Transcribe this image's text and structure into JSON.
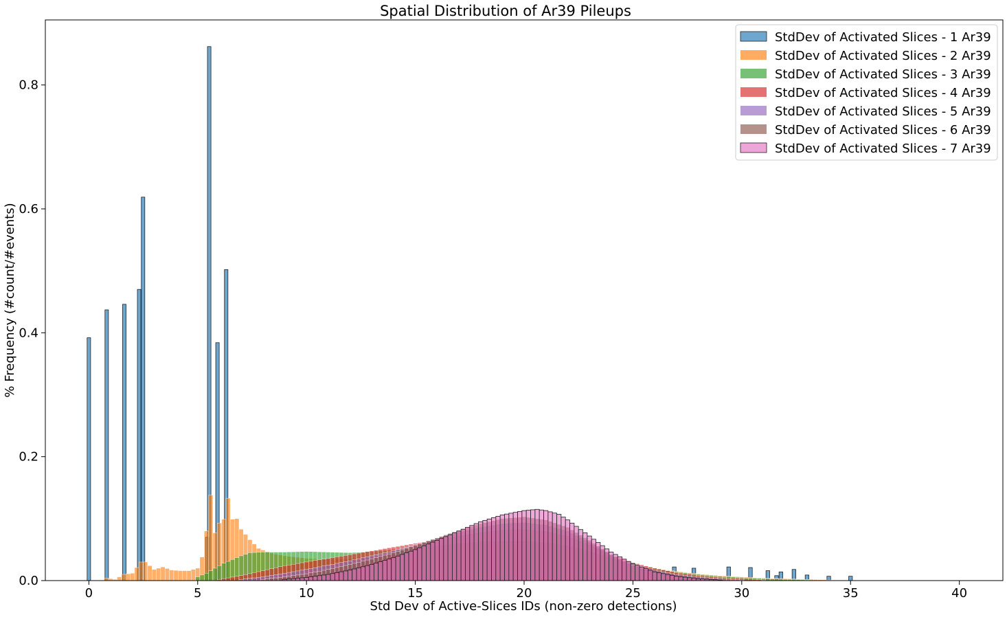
{
  "chart_data": {
    "type": "bar",
    "title": "Spatial Distribution of Ar39 Pileups",
    "xlabel": "Std Dev of Active-Slices IDs (non-zero detections)",
    "ylabel": "% Frequency (#count/#events)",
    "xlim": [
      -2.0,
      42.0
    ],
    "ylim": [
      0,
      0.905
    ],
    "xticks": [
      0,
      5,
      10,
      15,
      20,
      25,
      30,
      35,
      40
    ],
    "yticks": [
      0.0,
      0.2,
      0.4,
      0.6,
      0.8
    ],
    "legend_position": "upper right",
    "bin_width": 0.2,
    "grid": false,
    "series": [
      {
        "name": "StdDev of Activated Slices - 1 Ar39",
        "color": "#1f77b4",
        "style": "bars",
        "points": [
          [
            0.0,
            0.392
          ],
          [
            0.82,
            0.437
          ],
          [
            1.63,
            0.446
          ],
          [
            2.31,
            0.47
          ],
          [
            2.49,
            0.619
          ],
          [
            5.44,
            0.07
          ],
          [
            5.53,
            0.862
          ],
          [
            5.91,
            0.384
          ],
          [
            6.31,
            0.502
          ],
          [
            26.9,
            0.022
          ],
          [
            27.8,
            0.02
          ],
          [
            29.4,
            0.022
          ],
          [
            30.4,
            0.021
          ],
          [
            31.2,
            0.016
          ],
          [
            31.6,
            0.008
          ],
          [
            31.8,
            0.014
          ],
          [
            32.4,
            0.018
          ],
          [
            33.0,
            0.009
          ],
          [
            34.0,
            0.007
          ],
          [
            35.0,
            0.007
          ]
        ]
      },
      {
        "name": "StdDev of Activated Slices - 2 Ar39",
        "color": "#ff7f0e",
        "style": "curve",
        "points": [
          [
            0.8,
            0.004
          ],
          [
            1.2,
            0.002
          ],
          [
            1.6,
            0.01
          ],
          [
            2.0,
            0.012
          ],
          [
            2.4,
            0.03
          ],
          [
            2.6,
            0.03
          ],
          [
            3.0,
            0.018
          ],
          [
            3.4,
            0.022
          ],
          [
            3.8,
            0.017
          ],
          [
            4.2,
            0.016
          ],
          [
            4.6,
            0.016
          ],
          [
            5.0,
            0.02
          ],
          [
            5.2,
            0.038
          ],
          [
            5.4,
            0.08
          ],
          [
            5.6,
            0.138
          ],
          [
            5.8,
            0.077
          ],
          [
            6.0,
            0.093
          ],
          [
            6.2,
            0.099
          ],
          [
            6.4,
            0.133
          ],
          [
            6.6,
            0.099
          ],
          [
            6.8,
            0.1
          ],
          [
            7.0,
            0.083
          ],
          [
            7.4,
            0.066
          ],
          [
            7.8,
            0.052
          ],
          [
            8.4,
            0.044
          ],
          [
            9.0,
            0.04
          ],
          [
            10.0,
            0.036
          ],
          [
            11.0,
            0.034
          ],
          [
            12.0,
            0.035
          ],
          [
            13.0,
            0.037
          ],
          [
            14.0,
            0.04
          ],
          [
            15.0,
            0.045
          ],
          [
            16.0,
            0.05
          ],
          [
            17.0,
            0.055
          ],
          [
            18.0,
            0.058
          ],
          [
            19.0,
            0.06
          ],
          [
            20.0,
            0.06
          ],
          [
            21.0,
            0.058
          ],
          [
            22.0,
            0.053
          ],
          [
            23.0,
            0.045
          ],
          [
            24.0,
            0.035
          ],
          [
            25.0,
            0.026
          ],
          [
            26.0,
            0.02
          ],
          [
            27.0,
            0.015
          ],
          [
            28.0,
            0.011
          ],
          [
            29.0,
            0.008
          ],
          [
            30.0,
            0.006
          ],
          [
            31.0,
            0.004
          ],
          [
            32.0,
            0.003
          ],
          [
            33.0,
            0.002
          ],
          [
            34.0,
            0.001
          ]
        ]
      },
      {
        "name": "StdDev of Activated Slices - 3 Ar39",
        "color": "#2ca02c",
        "style": "curve",
        "points": [
          [
            5.0,
            0.006
          ],
          [
            5.4,
            0.012
          ],
          [
            5.8,
            0.02
          ],
          [
            6.2,
            0.028
          ],
          [
            6.6,
            0.034
          ],
          [
            7.0,
            0.04
          ],
          [
            7.4,
            0.045
          ],
          [
            8.0,
            0.046
          ],
          [
            9.0,
            0.046
          ],
          [
            10.0,
            0.047
          ],
          [
            11.0,
            0.046
          ],
          [
            12.0,
            0.045
          ],
          [
            13.0,
            0.047
          ],
          [
            14.0,
            0.05
          ],
          [
            15.0,
            0.053
          ],
          [
            16.0,
            0.057
          ],
          [
            17.0,
            0.06
          ],
          [
            18.0,
            0.063
          ],
          [
            19.0,
            0.064
          ],
          [
            20.0,
            0.064
          ],
          [
            21.0,
            0.062
          ],
          [
            22.0,
            0.057
          ],
          [
            23.0,
            0.048
          ],
          [
            24.0,
            0.037
          ],
          [
            25.0,
            0.026
          ],
          [
            26.0,
            0.02
          ],
          [
            27.0,
            0.014
          ],
          [
            28.0,
            0.01
          ],
          [
            29.0,
            0.007
          ],
          [
            30.0,
            0.005
          ],
          [
            31.0,
            0.003
          ],
          [
            32.0,
            0.002
          ],
          [
            33.0,
            0.001
          ]
        ]
      },
      {
        "name": "StdDev of Activated Slices - 4 Ar39",
        "color": "#d62728",
        "style": "curve",
        "points": [
          [
            6.0,
            0.002
          ],
          [
            7.0,
            0.008
          ],
          [
            8.0,
            0.016
          ],
          [
            9.0,
            0.024
          ],
          [
            10.0,
            0.03
          ],
          [
            11.0,
            0.036
          ],
          [
            12.0,
            0.042
          ],
          [
            13.0,
            0.048
          ],
          [
            14.0,
            0.054
          ],
          [
            15.0,
            0.06
          ],
          [
            16.0,
            0.066
          ],
          [
            17.0,
            0.072
          ],
          [
            18.0,
            0.078
          ],
          [
            19.0,
            0.082
          ],
          [
            20.0,
            0.083
          ],
          [
            21.0,
            0.08
          ],
          [
            22.0,
            0.072
          ],
          [
            23.0,
            0.058
          ],
          [
            24.0,
            0.042
          ],
          [
            25.0,
            0.029
          ],
          [
            26.0,
            0.02
          ],
          [
            27.0,
            0.013
          ],
          [
            28.0,
            0.008
          ],
          [
            29.0,
            0.005
          ],
          [
            30.0,
            0.003
          ],
          [
            31.0,
            0.001
          ]
        ]
      },
      {
        "name": "StdDev of Activated Slices - 5 Ar39",
        "color": "#9467bd",
        "style": "curve",
        "points": [
          [
            7.0,
            0.002
          ],
          [
            8.0,
            0.006
          ],
          [
            9.0,
            0.012
          ],
          [
            10.0,
            0.018
          ],
          [
            11.0,
            0.025
          ],
          [
            12.0,
            0.032
          ],
          [
            13.0,
            0.04
          ],
          [
            14.0,
            0.048
          ],
          [
            15.0,
            0.058
          ],
          [
            16.0,
            0.068
          ],
          [
            17.0,
            0.078
          ],
          [
            18.0,
            0.086
          ],
          [
            19.0,
            0.092
          ],
          [
            20.0,
            0.094
          ],
          [
            21.0,
            0.09
          ],
          [
            22.0,
            0.08
          ],
          [
            23.0,
            0.062
          ],
          [
            24.0,
            0.042
          ],
          [
            25.0,
            0.027
          ],
          [
            26.0,
            0.017
          ],
          [
            27.0,
            0.01
          ],
          [
            28.0,
            0.006
          ],
          [
            29.0,
            0.003
          ],
          [
            30.0,
            0.001
          ]
        ]
      },
      {
        "name": "StdDev of Activated Slices - 6 Ar39",
        "color": "#8c564b",
        "style": "curve",
        "points": [
          [
            8.0,
            0.002
          ],
          [
            9.0,
            0.006
          ],
          [
            10.0,
            0.011
          ],
          [
            11.0,
            0.018
          ],
          [
            12.0,
            0.026
          ],
          [
            13.0,
            0.035
          ],
          [
            14.0,
            0.045
          ],
          [
            15.0,
            0.057
          ],
          [
            16.0,
            0.069
          ],
          [
            17.0,
            0.081
          ],
          [
            18.0,
            0.092
          ],
          [
            19.0,
            0.1
          ],
          [
            20.0,
            0.103
          ],
          [
            21.0,
            0.098
          ],
          [
            22.0,
            0.086
          ],
          [
            23.0,
            0.065
          ],
          [
            24.0,
            0.042
          ],
          [
            25.0,
            0.025
          ],
          [
            26.0,
            0.014
          ],
          [
            27.0,
            0.007
          ],
          [
            28.0,
            0.003
          ],
          [
            29.0,
            0.001
          ]
        ]
      },
      {
        "name": "StdDev of Activated Slices - 7 Ar39",
        "color": "#e377c2",
        "style": "curve",
        "points": [
          [
            9.0,
            0.002
          ],
          [
            10.0,
            0.005
          ],
          [
            11.0,
            0.01
          ],
          [
            12.0,
            0.017
          ],
          [
            13.0,
            0.026
          ],
          [
            14.0,
            0.037
          ],
          [
            15.0,
            0.05
          ],
          [
            16.0,
            0.065
          ],
          [
            17.0,
            0.08
          ],
          [
            18.0,
            0.095
          ],
          [
            19.0,
            0.106
          ],
          [
            20.0,
            0.113
          ],
          [
            20.6,
            0.115
          ],
          [
            21.0,
            0.113
          ],
          [
            21.6,
            0.107
          ],
          [
            22.0,
            0.098
          ],
          [
            23.0,
            0.072
          ],
          [
            24.0,
            0.046
          ],
          [
            25.0,
            0.027
          ],
          [
            26.0,
            0.014
          ],
          [
            27.0,
            0.007
          ],
          [
            28.0,
            0.003
          ],
          [
            29.0,
            0.001
          ]
        ]
      }
    ]
  }
}
